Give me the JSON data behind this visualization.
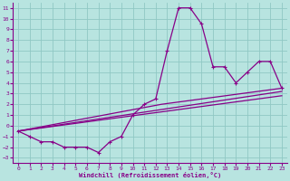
{
  "xlabel": "Windchill (Refroidissement éolien,°C)",
  "bg_color": "#b8e4e0",
  "grid_color": "#90c8c4",
  "line_color": "#880088",
  "xlim": [
    -0.5,
    23.5
  ],
  "ylim": [
    -3.5,
    11.5
  ],
  "xticks": [
    0,
    1,
    2,
    3,
    4,
    5,
    6,
    7,
    8,
    9,
    10,
    11,
    12,
    13,
    14,
    15,
    16,
    17,
    18,
    19,
    20,
    21,
    22,
    23
  ],
  "yticks": [
    -3,
    -2,
    -1,
    0,
    1,
    2,
    3,
    4,
    5,
    6,
    7,
    8,
    9,
    10,
    11
  ],
  "series1_x": [
    0,
    1,
    2,
    3,
    4,
    5,
    6,
    7,
    8,
    9,
    10,
    11,
    12,
    13,
    14,
    15,
    16,
    17,
    18,
    19,
    20,
    21,
    22,
    23
  ],
  "series1_y": [
    -0.5,
    -1.0,
    -1.5,
    -1.5,
    -2.0,
    -2.0,
    -2.0,
    -2.5,
    -1.5,
    -1.0,
    1.0,
    2.0,
    2.5,
    7.0,
    11.0,
    11.0,
    9.5,
    5.5,
    5.5,
    4.0,
    5.0,
    6.0,
    6.0,
    3.5
  ],
  "line2_x": [
    0,
    12.5,
    23
  ],
  "line2_y": [
    -0.5,
    2.0,
    3.5
  ],
  "line3_x": [
    0,
    23
  ],
  "line3_y": [
    -0.5,
    3.2
  ],
  "line4_x": [
    0,
    23
  ],
  "line4_y": [
    -0.5,
    2.8
  ]
}
